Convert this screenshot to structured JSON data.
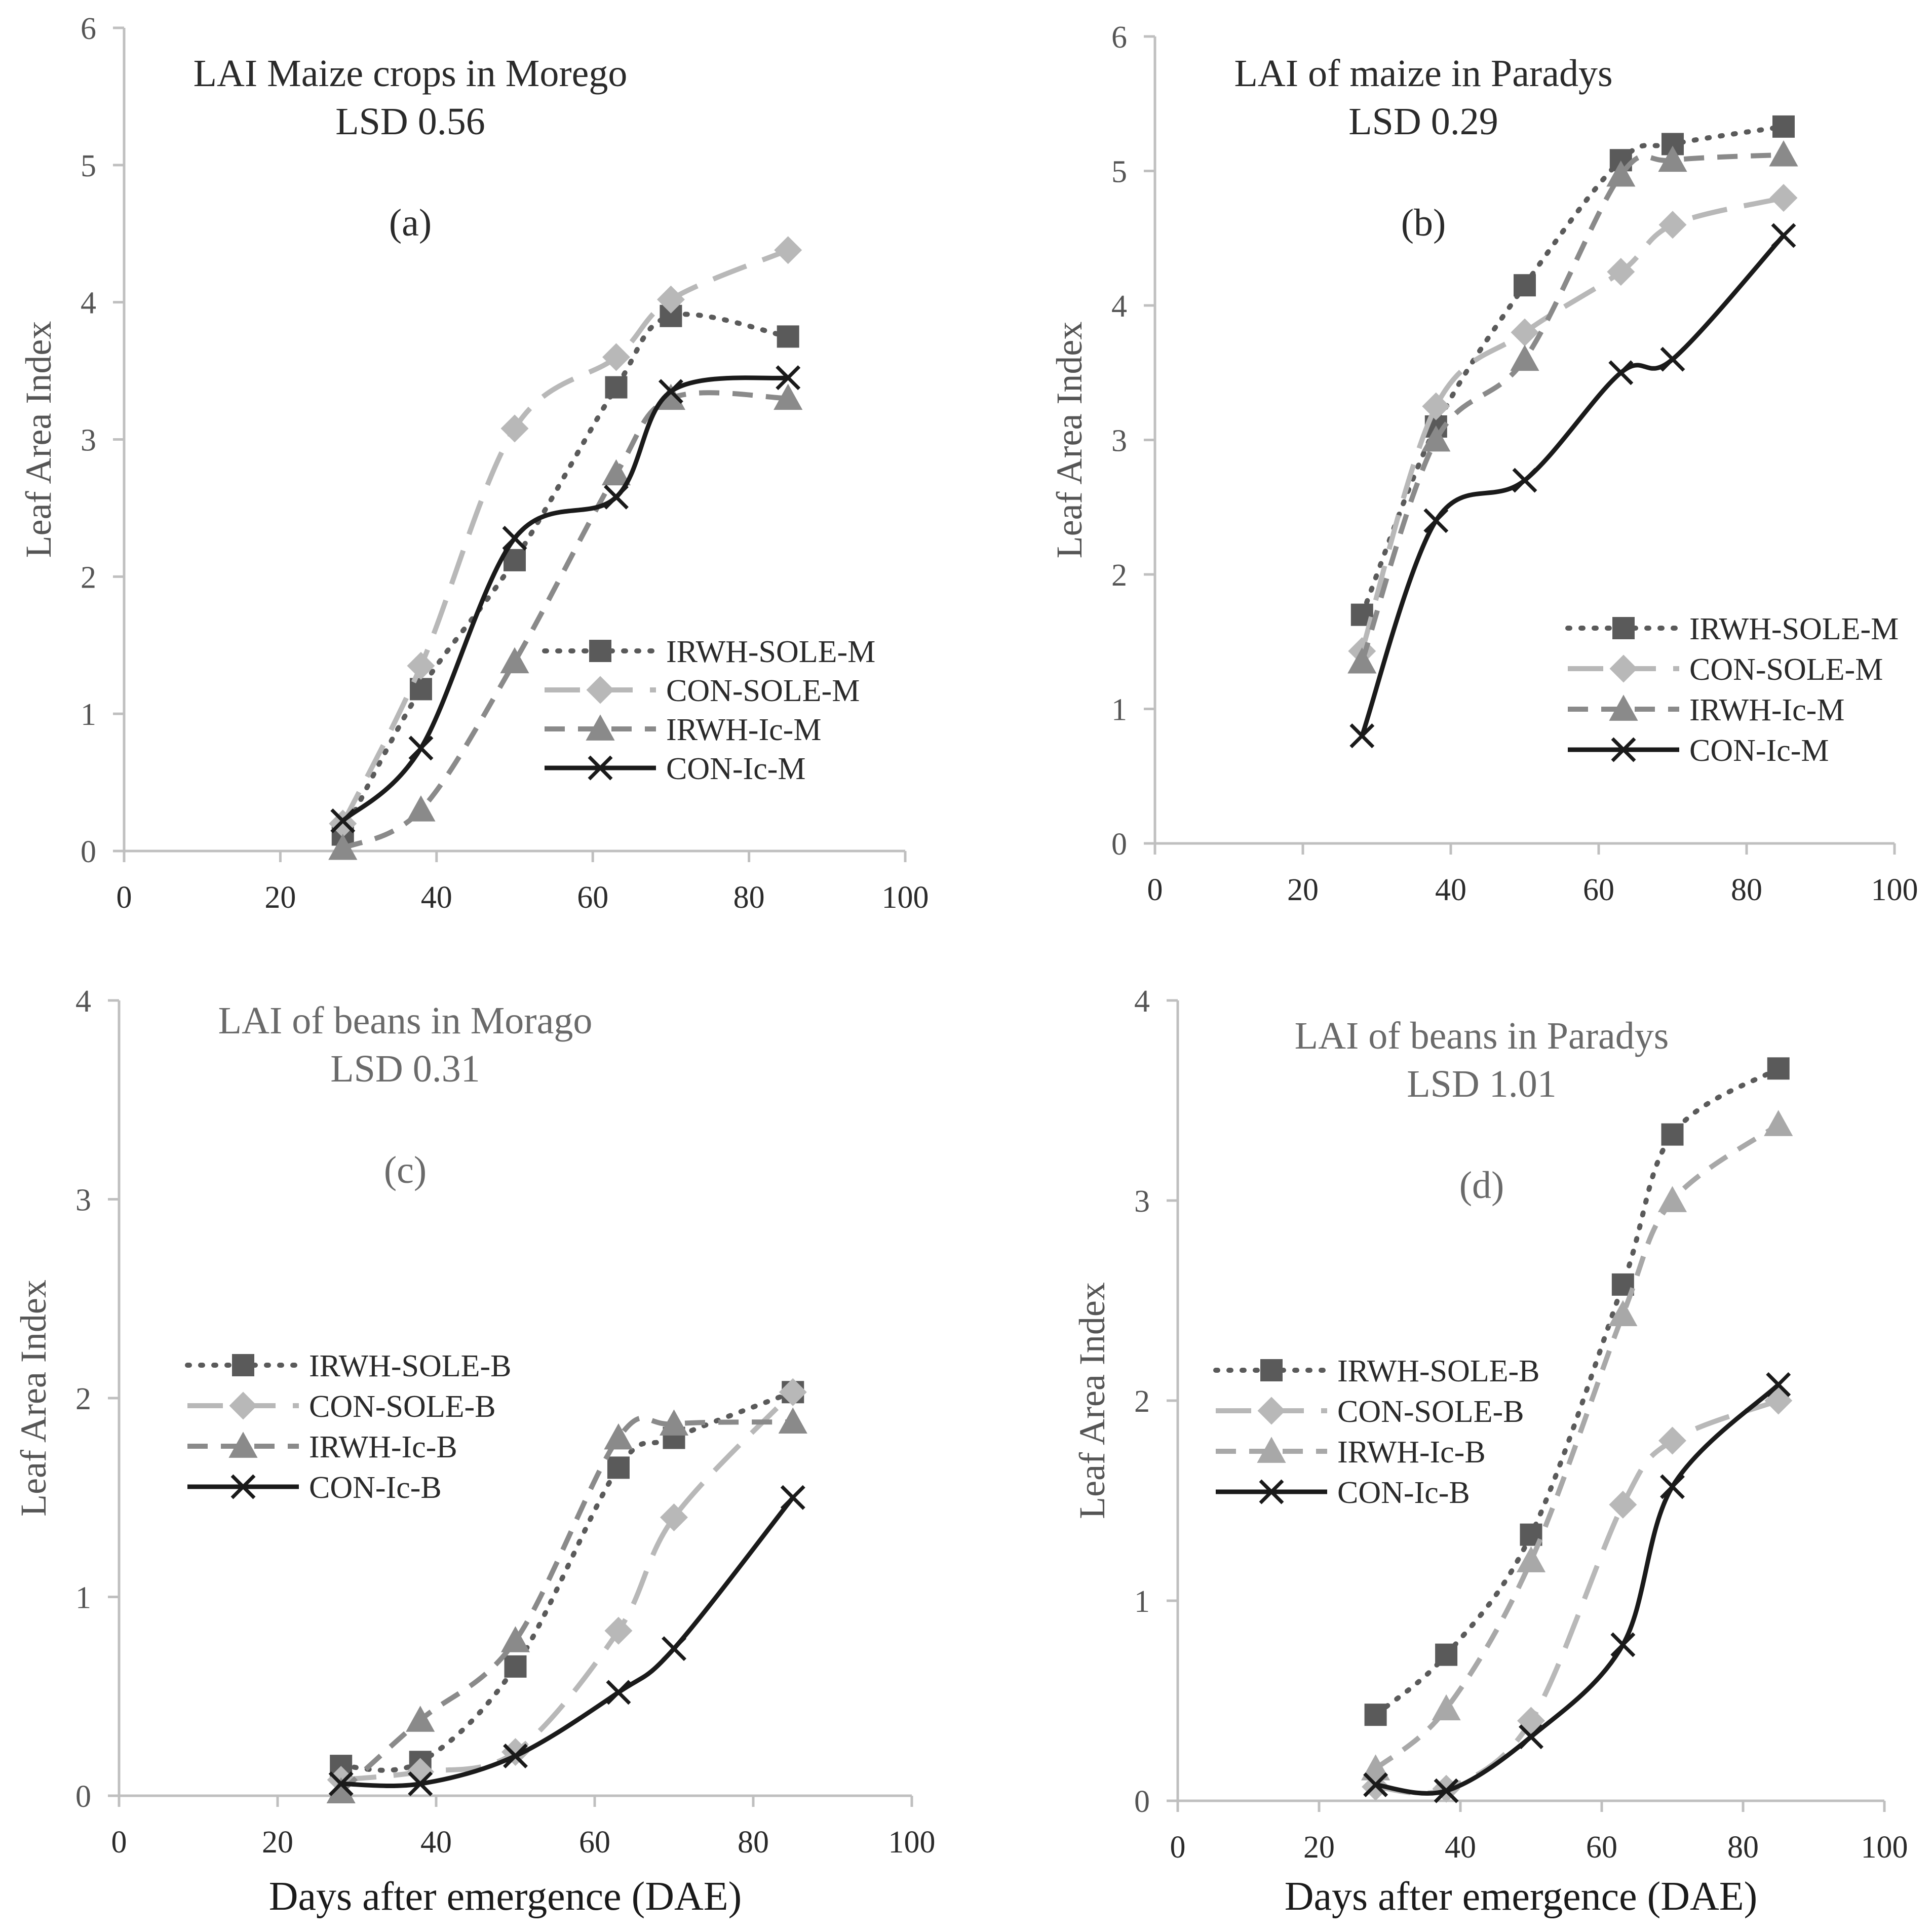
{
  "chart_data": [
    {
      "type": "line",
      "panel": "(a)",
      "title": "LAI Maize crops in Morego",
      "subtitle": "LSD 0.56",
      "xlabel": "",
      "ylabel": "Leaf Area Index",
      "xlim": [
        0,
        100
      ],
      "ylim": [
        0,
        6
      ],
      "xticks": [
        0,
        20,
        40,
        60,
        80,
        100
      ],
      "yticks": [
        0,
        1,
        2,
        3,
        4,
        5,
        6
      ],
      "xtick_labels": [
        "0",
        "20",
        "40",
        "60",
        "80",
        "100"
      ],
      "ytick_labels": [
        "0",
        "1",
        "2",
        "3",
        "4",
        "5",
        "6"
      ],
      "legend_position": "middle-right",
      "x": [
        28,
        38,
        50,
        63,
        70,
        85
      ],
      "series": [
        {
          "name": "IRWH-SOLE-M",
          "values": [
            0.12,
            1.18,
            2.12,
            3.38,
            3.9,
            3.75
          ],
          "color": "#5a5a5a",
          "style": "dotted",
          "marker": "square"
        },
        {
          "name": "CON-SOLE-M",
          "values": [
            0.2,
            1.35,
            3.08,
            3.6,
            4.02,
            4.38
          ],
          "color": "#b8b8b8",
          "style": "dashed",
          "marker": "diamond"
        },
        {
          "name": "IRWH-Ic-M",
          "values": [
            0.02,
            0.3,
            1.38,
            2.75,
            3.3,
            3.3
          ],
          "color": "#8a8a8a",
          "style": "shortdash",
          "marker": "triangle"
        },
        {
          "name": "CON-Ic-M",
          "values": [
            0.22,
            0.75,
            2.28,
            2.58,
            3.35,
            3.45
          ],
          "color": "#1a1a1a",
          "style": "solid",
          "marker": "x"
        }
      ]
    },
    {
      "type": "line",
      "panel": "(b)",
      "title": "LAI of maize in Paradys",
      "subtitle": "LSD 0.29",
      "xlabel": "",
      "ylabel": "Leaf Area Index",
      "xlim": [
        0,
        100
      ],
      "ylim": [
        0,
        6
      ],
      "xticks": [
        0,
        20,
        40,
        60,
        80,
        100
      ],
      "yticks": [
        0,
        1,
        2,
        3,
        4,
        5,
        6
      ],
      "xtick_labels": [
        "0",
        "20",
        "40",
        "60",
        "80",
        "100"
      ],
      "ytick_labels": [
        "0",
        "1",
        "2",
        "3",
        "4",
        "5",
        "6"
      ],
      "legend_position": "bottom-right",
      "x": [
        28,
        38,
        50,
        63,
        70,
        85
      ],
      "series": [
        {
          "name": "IRWH-SOLE-M",
          "values": [
            1.7,
            3.1,
            4.15,
            5.08,
            5.2,
            5.33
          ],
          "color": "#5a5a5a",
          "style": "dotted",
          "marker": "square"
        },
        {
          "name": "CON-SOLE-M",
          "values": [
            1.43,
            3.25,
            3.8,
            4.25,
            4.6,
            4.8
          ],
          "color": "#b8b8b8",
          "style": "dashed",
          "marker": "diamond"
        },
        {
          "name": "IRWH-Ic-M",
          "values": [
            1.35,
            3.0,
            3.6,
            4.97,
            5.08,
            5.12
          ],
          "color": "#8a8a8a",
          "style": "shortdash",
          "marker": "triangle"
        },
        {
          "name": "CON-Ic-M",
          "values": [
            0.8,
            2.4,
            2.7,
            3.5,
            3.6,
            4.52
          ],
          "color": "#1a1a1a",
          "style": "solid",
          "marker": "x"
        }
      ]
    },
    {
      "type": "line",
      "panel": "(c)",
      "title": "LAI of beans in Morago",
      "subtitle": "LSD 0.31",
      "xlabel": "Days after emergence (DAE)",
      "ylabel": "Leaf Area Index",
      "xlim": [
        0,
        100
      ],
      "ylim": [
        0,
        4
      ],
      "xticks": [
        0,
        20,
        40,
        60,
        80,
        100
      ],
      "yticks": [
        0,
        1,
        2,
        3,
        4
      ],
      "xtick_labels": [
        "0",
        "20",
        "40",
        "60",
        "80",
        "100"
      ],
      "ytick_labels": [
        "0",
        "1",
        "2",
        "3",
        "4"
      ],
      "legend_position": "middle-left",
      "x": [
        28,
        38,
        50,
        63,
        70,
        85
      ],
      "series": [
        {
          "name": "IRWH-SOLE-B",
          "values": [
            0.15,
            0.17,
            0.65,
            1.65,
            1.8,
            2.03
          ],
          "color": "#5a5a5a",
          "style": "dotted",
          "marker": "square"
        },
        {
          "name": "CON-SOLE-B",
          "values": [
            0.08,
            0.12,
            0.22,
            0.83,
            1.4,
            2.03
          ],
          "color": "#b8b8b8",
          "style": "dashed",
          "marker": "diamond"
        },
        {
          "name": "IRWH-Ic-B",
          "values": [
            0.02,
            0.38,
            0.78,
            1.8,
            1.87,
            1.88
          ],
          "color": "#8a8a8a",
          "style": "shortdash",
          "marker": "triangle"
        },
        {
          "name": "CON-Ic-B",
          "values": [
            0.06,
            0.06,
            0.2,
            0.52,
            0.74,
            1.5
          ],
          "color": "#1a1a1a",
          "style": "solid",
          "marker": "x"
        }
      ]
    },
    {
      "type": "line",
      "panel": "(d)",
      "title": "LAI of beans  in Paradys",
      "subtitle": "LSD 1.01",
      "xlabel": "Days after emergence (DAE)",
      "ylabel": "Leaf Area Index",
      "xlim": [
        0,
        100
      ],
      "ylim": [
        0,
        4
      ],
      "xticks": [
        0,
        20,
        40,
        60,
        80,
        100
      ],
      "yticks": [
        0,
        1,
        2,
        3,
        4
      ],
      "xtick_labels": [
        "0",
        "20",
        "40",
        "60",
        "80",
        "100"
      ],
      "ytick_labels": [
        "0",
        "1",
        "2",
        "3",
        "4"
      ],
      "legend_position": "middle-left",
      "x": [
        28,
        38,
        50,
        63,
        70,
        85
      ],
      "series": [
        {
          "name": "IRWH-SOLE-B",
          "values": [
            0.43,
            0.73,
            1.33,
            2.58,
            3.33,
            3.66
          ],
          "color": "#5a5a5a",
          "style": "dotted",
          "marker": "square"
        },
        {
          "name": "CON-SOLE-B",
          "values": [
            0.07,
            0.06,
            0.4,
            1.48,
            1.8,
            2.0
          ],
          "color": "#b8b8b8",
          "style": "dashed",
          "marker": "diamond"
        },
        {
          "name": "IRWH-Ic-B",
          "values": [
            0.16,
            0.46,
            1.2,
            2.43,
            3.0,
            3.38
          ],
          "color": "#a8a8a8",
          "style": "shortdash",
          "marker": "triangle"
        },
        {
          "name": "CON-Ic-B",
          "values": [
            0.08,
            0.05,
            0.32,
            0.78,
            1.57,
            2.08
          ],
          "color": "#1a1a1a",
          "style": "solid",
          "marker": "x"
        }
      ]
    }
  ]
}
